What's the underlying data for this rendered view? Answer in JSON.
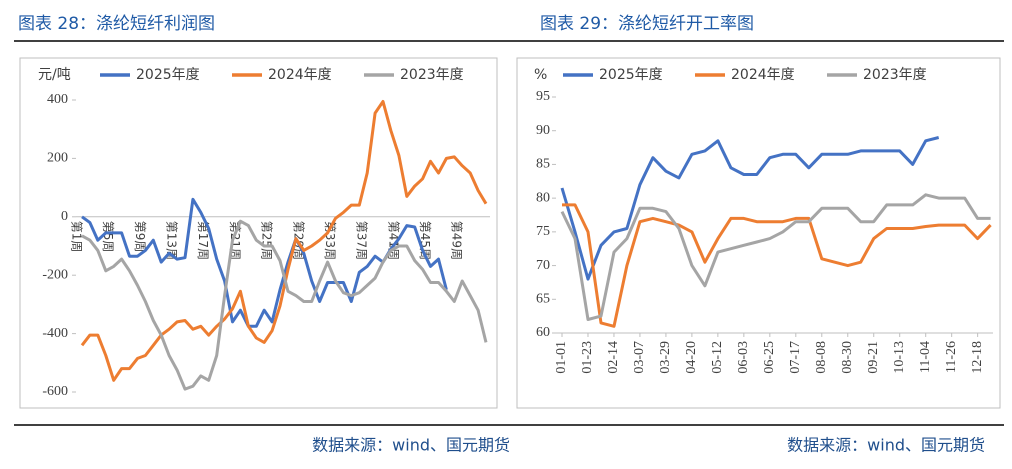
{
  "chart_data": [
    {
      "type": "line",
      "title": "图表 28：涤纶短纤利润图",
      "y_unit": "元/吨",
      "source": "数据来源：wind、国元期货",
      "categories": [
        "第1周",
        null,
        null,
        null,
        "第5周",
        null,
        null,
        null,
        "第9周",
        null,
        null,
        null,
        "第13周",
        null,
        null,
        null,
        "第17周",
        null,
        null,
        null,
        "第21周",
        null,
        null,
        null,
        "第25周",
        null,
        null,
        null,
        "第29周",
        null,
        null,
        null,
        "第33周",
        null,
        null,
        null,
        "第37周",
        null,
        null,
        null,
        "第41周",
        null,
        null,
        null,
        "第45周",
        null,
        null,
        null,
        "第49周",
        null,
        null,
        null
      ],
      "ylim": [
        -600,
        400
      ],
      "yticks": [
        -600,
        -400,
        -200,
        0,
        200,
        400
      ],
      "series": [
        {
          "name": "2025年度",
          "color": "#4472c4",
          "values": [
            0,
            -20,
            -80,
            -55,
            -55,
            -55,
            -135,
            -135,
            -115,
            -80,
            -155,
            -125,
            -145,
            -140,
            60,
            15,
            -40,
            -145,
            -220,
            -360,
            -320,
            -375,
            -375,
            -320,
            -360,
            -250,
            -155,
            -75,
            -125,
            -220,
            -290,
            -225,
            -225,
            -225,
            -290,
            -190,
            -170,
            -135,
            -155,
            -110,
            -75,
            -30,
            -35,
            -115,
            -170,
            -145,
            -250,
            null,
            null,
            null,
            null,
            null
          ]
        },
        {
          "name": "2024年度",
          "color": "#ed7d31",
          "values": [
            -440,
            -405,
            -405,
            -475,
            -560,
            -520,
            -520,
            -485,
            -475,
            -440,
            -405,
            -385,
            -360,
            -355,
            -385,
            -375,
            -405,
            -375,
            -350,
            -315,
            -255,
            -375,
            -415,
            -430,
            -390,
            -305,
            -180,
            -75,
            -115,
            -100,
            -80,
            -55,
            -5,
            15,
            40,
            40,
            150,
            355,
            395,
            295,
            210,
            70,
            105,
            130,
            190,
            150,
            200,
            205,
            175,
            150,
            90,
            45
          ]
        },
        {
          "name": "2023年度",
          "color": "#a5a5a5",
          "values": [
            -65,
            -80,
            -115,
            -185,
            -170,
            -145,
            -185,
            -235,
            -290,
            -355,
            -405,
            -475,
            -525,
            -590,
            -580,
            -545,
            -560,
            -475,
            -270,
            -80,
            -15,
            -30,
            -80,
            -100,
            -100,
            -150,
            -255,
            -270,
            -290,
            -290,
            -220,
            -155,
            -220,
            -260,
            -270,
            -260,
            -235,
            -210,
            -155,
            -115,
            -100,
            -100,
            -150,
            -180,
            -225,
            -225,
            -255,
            -290,
            -220,
            -270,
            -320,
            -430
          ]
        }
      ]
    },
    {
      "type": "line",
      "title": "图表 29：涤纶短纤开工率图",
      "y_unit": "%",
      "source": "数据来源：wind、国元期货",
      "x": [
        "01-01",
        "01-12",
        "01-23",
        "02-03",
        "02-14",
        "02-25",
        "03-07",
        "03-18",
        "03-29",
        "04-09",
        "04-20",
        "05-01",
        "05-12",
        "05-23",
        "06-03",
        "06-14",
        "06-25",
        "07-06",
        "07-17",
        "07-28",
        "08-08",
        "08-19",
        "08-30",
        "09-10",
        "09-21",
        "10-02",
        "10-13",
        "10-24",
        "11-04",
        "11-15",
        "11-26",
        "12-07",
        "12-18",
        "12-29"
      ],
      "xlim": [
        "01-01",
        "12-31"
      ],
      "xticks": [
        "01-01",
        "01-23",
        "02-14",
        "03-07",
        "03-29",
        "04-20",
        "05-12",
        "06-03",
        "06-25",
        "07-17",
        "08-08",
        "08-30",
        "09-21",
        "10-13",
        "11-04",
        "11-26",
        "12-18"
      ],
      "ylim": [
        60,
        95
      ],
      "yticks": [
        60,
        65,
        70,
        75,
        80,
        85,
        90,
        95
      ],
      "series": [
        {
          "name": "2025年度",
          "color": "#4472c4",
          "values": [
            81.5,
            75,
            68,
            73,
            75,
            75.5,
            82,
            86,
            84,
            83,
            86.5,
            87,
            88.5,
            84.5,
            83.5,
            83.5,
            86,
            86.5,
            86.5,
            84.5,
            86.5,
            86.5,
            86.5,
            87,
            87,
            87,
            87,
            85,
            88.5,
            89,
            null,
            null,
            null,
            null
          ]
        },
        {
          "name": "2024年度",
          "color": "#ed7d31",
          "values": [
            79,
            79,
            75,
            61.5,
            61,
            70,
            76.5,
            77,
            76.5,
            76,
            75,
            70.5,
            74,
            77,
            77,
            76.5,
            76.5,
            76.5,
            77,
            77,
            71,
            70.5,
            70,
            70.5,
            74,
            75.5,
            75.5,
            75.5,
            75.8,
            76,
            76,
            76,
            74,
            76
          ]
        },
        {
          "name": "2023年度",
          "color": "#a5a5a5",
          "values": [
            78,
            74,
            62,
            62.5,
            72,
            74,
            78.5,
            78.5,
            78,
            75.5,
            70,
            67,
            72,
            72.5,
            73,
            73.5,
            74,
            75,
            76.5,
            76.5,
            78.5,
            78.5,
            78.5,
            76.5,
            76.5,
            79,
            79,
            79,
            80.5,
            80,
            80,
            80,
            77,
            77
          ]
        }
      ]
    }
  ]
}
